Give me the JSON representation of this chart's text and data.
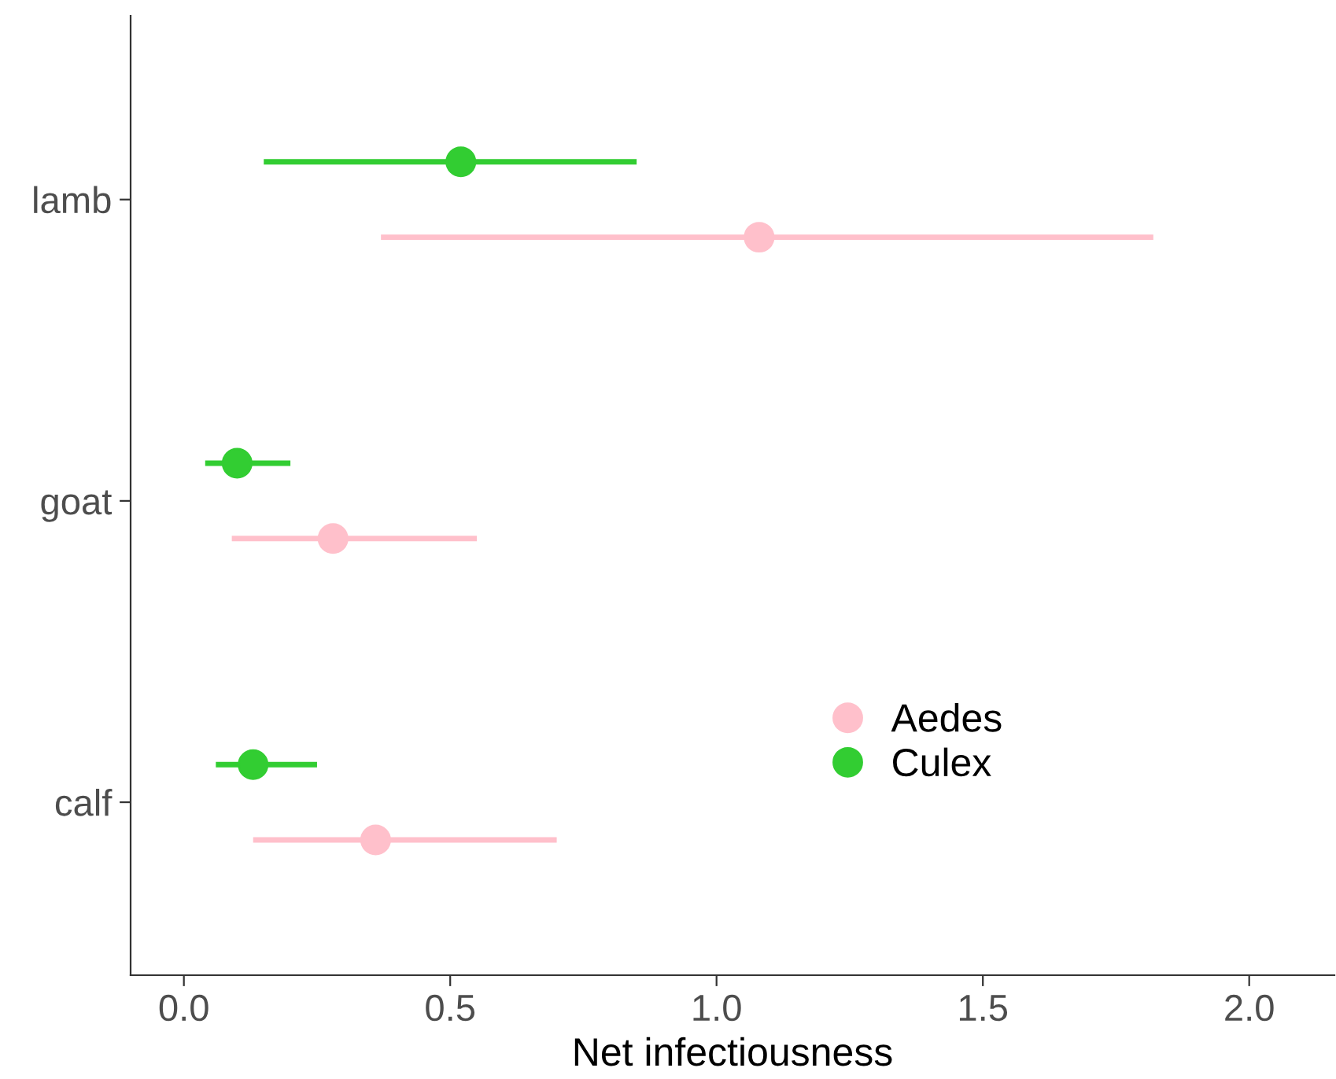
{
  "chart_data": {
    "type": "scatter",
    "orientation": "horizontal",
    "xlabel": "Net infectiousness",
    "categories": [
      "lamb",
      "goat",
      "calf"
    ],
    "series": [
      {
        "name": "Aedes",
        "color": "#ffc0cb",
        "values": [
          1.08,
          0.28,
          0.36
        ],
        "errors": [
          [
            0.37,
            1.82
          ],
          [
            0.09,
            0.55
          ],
          [
            0.13,
            0.7
          ]
        ]
      },
      {
        "name": "Culex",
        "color": "#32cd32",
        "values": [
          0.52,
          0.1,
          0.13
        ],
        "errors": [
          [
            0.15,
            0.85
          ],
          [
            0.04,
            0.2
          ],
          [
            0.06,
            0.25
          ]
        ]
      }
    ],
    "xlim": [
      -0.1,
      2.16
    ],
    "xticks": [
      {
        "value": 0,
        "label": "0.0"
      },
      0.5,
      {
        "value": 1,
        "label": "1.0"
      },
      1.5,
      {
        "value": 2,
        "label": "2.0"
      }
    ],
    "grid": false,
    "legend": "right",
    "marker": "circle"
  }
}
